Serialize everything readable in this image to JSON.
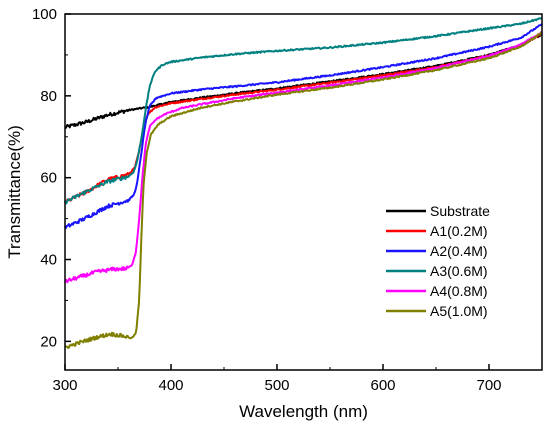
{
  "chart_data": {
    "type": "line",
    "title": "",
    "xlabel": "Wavelength (nm)",
    "ylabel": "Transmittance(%)",
    "xlim": [
      300,
      750
    ],
    "ylim": [
      13,
      100
    ],
    "x_ticks": [
      "300",
      "400",
      "500",
      "600",
      "700"
    ],
    "y_ticks": [
      "20",
      "40",
      "60",
      "80",
      "100"
    ],
    "x_tick_values": [
      300,
      400,
      500,
      600,
      700
    ],
    "y_tick_values": [
      20,
      40,
      60,
      80,
      100
    ],
    "grid": false,
    "legend_position": "bottom-right",
    "series": [
      {
        "name": "Substrate",
        "color": "#000000",
        "points": [
          [
            300,
            72.3
          ],
          [
            320,
            73.6
          ],
          [
            340,
            75.3
          ],
          [
            360,
            76.5
          ],
          [
            380,
            77.3
          ],
          [
            400,
            78.5
          ],
          [
            430,
            79.6
          ],
          [
            460,
            80.6
          ],
          [
            500,
            81.8
          ],
          [
            550,
            83.5
          ],
          [
            600,
            85.3
          ],
          [
            650,
            87.3
          ],
          [
            700,
            90.0
          ],
          [
            730,
            92.4
          ],
          [
            750,
            95.0
          ]
        ]
      },
      {
        "name": "A1(0.2M)",
        "color": "#ff0000",
        "points": [
          [
            300,
            54.0
          ],
          [
            320,
            56.5
          ],
          [
            340,
            59.5
          ],
          [
            360,
            60.8
          ],
          [
            366,
            62.5
          ],
          [
            370,
            66.5
          ],
          [
            374,
            72.0
          ],
          [
            378,
            75.5
          ],
          [
            385,
            77.2
          ],
          [
            400,
            78.2
          ],
          [
            430,
            79.3
          ],
          [
            460,
            80.3
          ],
          [
            500,
            81.5
          ],
          [
            550,
            83.2
          ],
          [
            600,
            85.0
          ],
          [
            650,
            87.0
          ],
          [
            700,
            89.8
          ],
          [
            730,
            92.2
          ],
          [
            750,
            95.3
          ]
        ]
      },
      {
        "name": "A2(0.4M)",
        "color": "#1a14ff",
        "points": [
          [
            300,
            47.8
          ],
          [
            320,
            50.2
          ],
          [
            340,
            53.0
          ],
          [
            360,
            54.5
          ],
          [
            365,
            55.8
          ],
          [
            368,
            58.5
          ],
          [
            372,
            66.0
          ],
          [
            376,
            73.5
          ],
          [
            380,
            77.5
          ],
          [
            386,
            79.5
          ],
          [
            400,
            80.6
          ],
          [
            430,
            81.6
          ],
          [
            460,
            82.3
          ],
          [
            500,
            83.3
          ],
          [
            550,
            85.0
          ],
          [
            600,
            87.0
          ],
          [
            650,
            89.2
          ],
          [
            700,
            92.0
          ],
          [
            730,
            94.2
          ],
          [
            750,
            97.5
          ]
        ]
      },
      {
        "name": "A3(0.6M)",
        "color": "#008080",
        "points": [
          [
            300,
            54.0
          ],
          [
            320,
            56.6
          ],
          [
            340,
            59.0
          ],
          [
            360,
            60.3
          ],
          [
            365,
            61.5
          ],
          [
            368,
            64.0
          ],
          [
            372,
            69.5
          ],
          [
            376,
            76.5
          ],
          [
            380,
            82.5
          ],
          [
            385,
            86.0
          ],
          [
            392,
            87.6
          ],
          [
            400,
            88.3
          ],
          [
            430,
            89.4
          ],
          [
            460,
            90.2
          ],
          [
            500,
            91.0
          ],
          [
            550,
            91.8
          ],
          [
            600,
            93.0
          ],
          [
            650,
            94.6
          ],
          [
            700,
            96.5
          ],
          [
            730,
            97.6
          ],
          [
            750,
            99.0
          ]
        ]
      },
      {
        "name": "A4(0.8M)",
        "color": "#ff00ff",
        "points": [
          [
            300,
            34.6
          ],
          [
            315,
            35.8
          ],
          [
            330,
            37.0
          ],
          [
            345,
            37.6
          ],
          [
            358,
            37.8
          ],
          [
            363,
            38.5
          ],
          [
            367,
            42.0
          ],
          [
            370,
            50.0
          ],
          [
            373,
            60.0
          ],
          [
            376,
            68.0
          ],
          [
            380,
            72.5
          ],
          [
            386,
            74.3
          ],
          [
            395,
            75.6
          ],
          [
            410,
            77.0
          ],
          [
            430,
            78.0
          ],
          [
            460,
            79.4
          ],
          [
            500,
            80.8
          ],
          [
            550,
            82.5
          ],
          [
            600,
            84.5
          ],
          [
            650,
            86.8
          ],
          [
            700,
            89.8
          ],
          [
            730,
            92.5
          ],
          [
            750,
            95.6
          ]
        ]
      },
      {
        "name": "A5(1.0M)",
        "color": "#808000",
        "points": [
          [
            300,
            18.5
          ],
          [
            315,
            19.8
          ],
          [
            330,
            21.0
          ],
          [
            343,
            21.8
          ],
          [
            355,
            21.3
          ],
          [
            363,
            20.8
          ],
          [
            367,
            22.0
          ],
          [
            370,
            30.0
          ],
          [
            372,
            45.0
          ],
          [
            374,
            58.0
          ],
          [
            377,
            66.0
          ],
          [
            381,
            70.5
          ],
          [
            388,
            73.0
          ],
          [
            400,
            75.0
          ],
          [
            430,
            77.2
          ],
          [
            460,
            78.6
          ],
          [
            500,
            80.3
          ],
          [
            550,
            82.0
          ],
          [
            600,
            84.0
          ],
          [
            650,
            86.3
          ],
          [
            700,
            89.2
          ],
          [
            730,
            92.0
          ],
          [
            750,
            95.5
          ]
        ]
      }
    ]
  }
}
